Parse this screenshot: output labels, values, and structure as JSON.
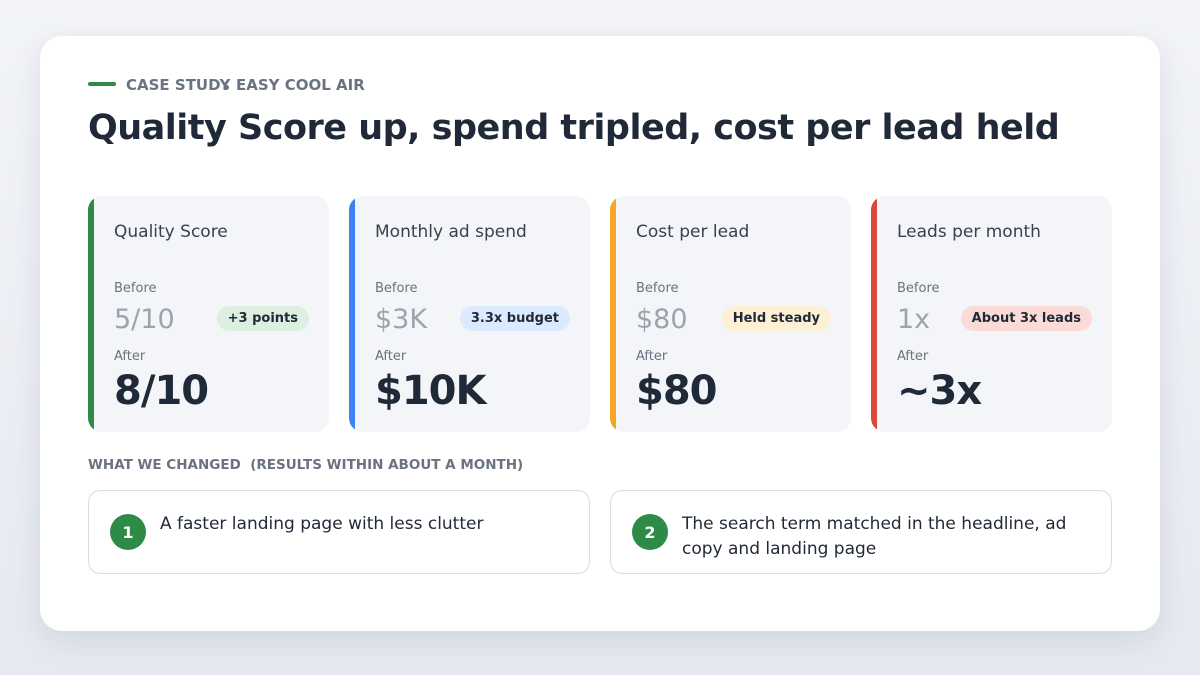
{
  "header": {
    "eyebrow": "CASE STUDY",
    "client": "EASY COOL AIR",
    "title": "Quality Score up, spend tripled, cost per lead held"
  },
  "stats": [
    {
      "label": "Quality Score",
      "before_label": "Before",
      "before": "5/10",
      "badge": "+3 points",
      "after_label": "After",
      "after": "8/10"
    },
    {
      "label": "Monthly ad spend",
      "before_label": "Before",
      "before": "$3K",
      "badge": "3.3x budget",
      "after_label": "After",
      "after": "$10K"
    },
    {
      "label": "Cost per lead",
      "before_label": "Before",
      "before": "$80",
      "badge": "Held steady",
      "after_label": "After",
      "after": "$80"
    },
    {
      "label": "Leads per month",
      "before_label": "Before",
      "before": "1x",
      "badge": "About 3x leads",
      "after_label": "After",
      "after": "~3x"
    }
  ],
  "changes": {
    "heading": "WHAT WE CHANGED",
    "note": "(RESULTS WITHIN ABOUT A MONTH)",
    "items": [
      {
        "number": 1,
        "text": "A faster landing page with less clutter"
      },
      {
        "number": 2,
        "text": "The search term matched in the headline, ad copy and landing page"
      }
    ]
  }
}
